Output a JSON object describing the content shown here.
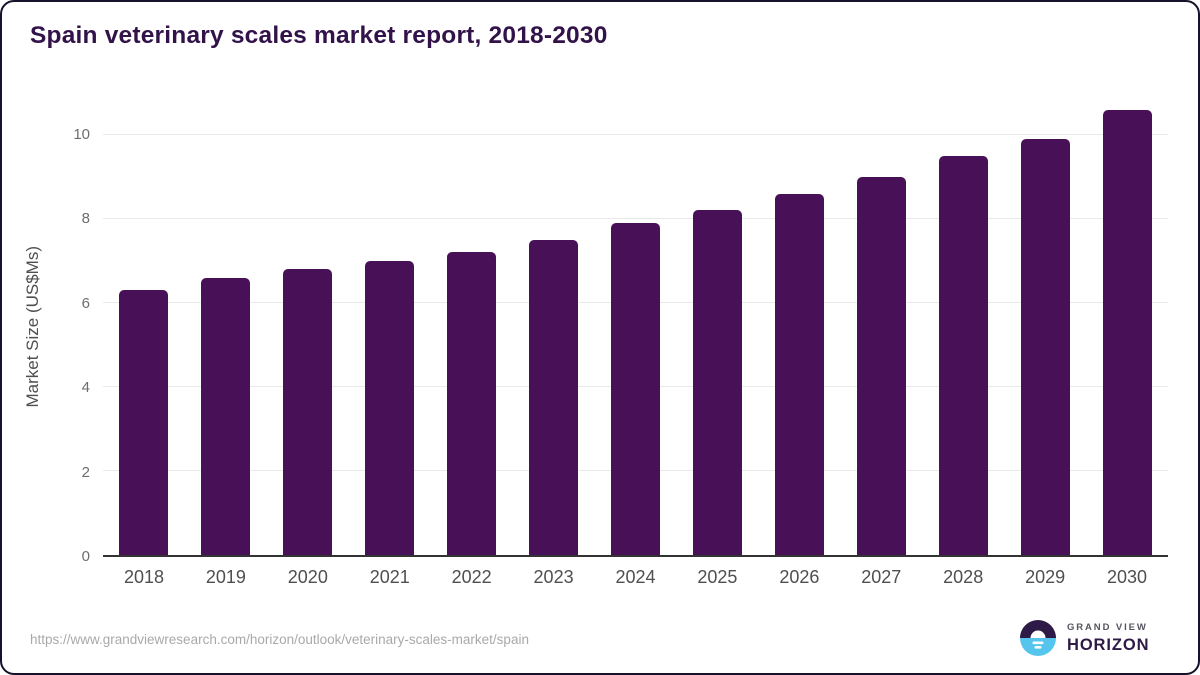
{
  "title": "Spain veterinary scales market report, 2018-2030",
  "chart_data": {
    "type": "bar",
    "title": "Spain veterinary scales market report, 2018-2030",
    "categories": [
      "2018",
      "2019",
      "2020",
      "2021",
      "2022",
      "2023",
      "2024",
      "2025",
      "2026",
      "2027",
      "2028",
      "2029",
      "2030"
    ],
    "values": [
      6.3,
      6.6,
      6.8,
      7.0,
      7.2,
      7.5,
      7.9,
      8.2,
      8.6,
      9.0,
      9.5,
      9.9,
      10.6
    ],
    "xlabel": "",
    "ylabel": "Market Size (US$Ms)",
    "ylim": [
      0,
      10.9
    ],
    "yticks": [
      0,
      2,
      4,
      6,
      8,
      10
    ],
    "grid": true,
    "legend": "none",
    "bar_color": "#481157"
  },
  "footer": {
    "source_url": "https://www.grandviewresearch.com/horizon/outlook/veterinary-scales-market/spain",
    "logo": {
      "brand": "GRAND VIEW",
      "name": "HORIZON"
    }
  },
  "colors": {
    "bar": "#481157",
    "title": "#321349",
    "axis": "#333333",
    "grid": "#e9e9e9",
    "tick": "#6e6e6e",
    "label": "#4f4f4f",
    "url_gray": "#a9a9a9",
    "brand_gray": "#54555f",
    "logo_purple": "#2e1a47",
    "logo_blue": "#56c5ee",
    "border": "#17122b"
  }
}
